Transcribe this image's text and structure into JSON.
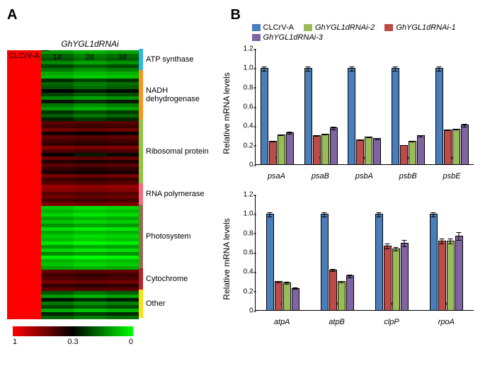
{
  "panelA": {
    "label": "A",
    "rnaiLabel": "GhYGL1dRNAi",
    "controlLabel": "CLCrV-A",
    "repLabels": [
      "1#",
      "2#",
      "3#"
    ],
    "scaleTicks": [
      "1",
      "0.3",
      "0"
    ],
    "scaleColors": [
      "#ff0000",
      "#000000",
      "#00ff00"
    ],
    "categories": [
      {
        "name": "ATP synthase",
        "color": "#33b5e7",
        "rows": 6
      },
      {
        "name": "NADH dehydrogenase",
        "color": "#f7941d",
        "rows": 14
      },
      {
        "name": "Ribosomal protein",
        "color": "#8cc63f",
        "rows": 18
      },
      {
        "name": "RNA polymerase",
        "color": "#f26d7d",
        "rows": 6
      },
      {
        "name": "Photosystem",
        "color": "#8b6f4e",
        "rows": 18
      },
      {
        "name": "Cytochrome",
        "color": "#b3252c",
        "rows": 6
      },
      {
        "name": "Other",
        "color": "#ffde17",
        "rows": 8
      }
    ],
    "heatmapRows": [
      [
        1.0,
        0.12,
        0.09,
        0.11
      ],
      [
        1.0,
        0.18,
        0.15,
        0.17
      ],
      [
        1.0,
        0.2,
        0.17,
        0.19
      ],
      [
        1.0,
        0.14,
        0.11,
        0.13
      ],
      [
        1.0,
        0.22,
        0.19,
        0.21
      ],
      [
        1.0,
        0.16,
        0.13,
        0.15
      ],
      [
        1.0,
        0.1,
        0.08,
        0.09
      ],
      [
        1.0,
        0.08,
        0.06,
        0.07
      ],
      [
        1.0,
        0.25,
        0.22,
        0.24
      ],
      [
        1.0,
        0.18,
        0.15,
        0.17
      ],
      [
        1.0,
        0.2,
        0.17,
        0.19
      ],
      [
        1.0,
        0.3,
        0.27,
        0.29
      ],
      [
        1.0,
        0.22,
        0.19,
        0.21
      ],
      [
        1.0,
        0.14,
        0.11,
        0.13
      ],
      [
        1.0,
        0.28,
        0.25,
        0.27
      ],
      [
        1.0,
        0.16,
        0.13,
        0.15
      ],
      [
        1.0,
        0.12,
        0.09,
        0.11
      ],
      [
        1.0,
        0.24,
        0.21,
        0.23
      ],
      [
        1.0,
        0.19,
        0.16,
        0.18
      ],
      [
        1.0,
        0.26,
        0.23,
        0.25
      ],
      [
        1.0,
        0.55,
        0.52,
        0.54
      ],
      [
        1.0,
        0.48,
        0.45,
        0.47
      ],
      [
        1.0,
        0.62,
        0.59,
        0.61
      ],
      [
        1.0,
        0.35,
        0.32,
        0.34
      ],
      [
        1.0,
        0.58,
        0.55,
        0.57
      ],
      [
        1.0,
        0.5,
        0.47,
        0.49
      ],
      [
        1.0,
        0.44,
        0.41,
        0.43
      ],
      [
        1.0,
        0.66,
        0.63,
        0.65
      ],
      [
        1.0,
        0.52,
        0.49,
        0.51
      ],
      [
        1.0,
        0.3,
        0.27,
        0.29
      ],
      [
        1.0,
        0.6,
        0.57,
        0.59
      ],
      [
        1.0,
        0.4,
        0.37,
        0.39
      ],
      [
        1.0,
        0.56,
        0.53,
        0.55
      ],
      [
        1.0,
        0.45,
        0.42,
        0.44
      ],
      [
        1.0,
        0.38,
        0.35,
        0.37
      ],
      [
        1.0,
        0.63,
        0.6,
        0.62
      ],
      [
        1.0,
        0.47,
        0.44,
        0.46
      ],
      [
        1.0,
        0.54,
        0.51,
        0.53
      ],
      [
        1.0,
        0.72,
        0.69,
        0.71
      ],
      [
        1.0,
        0.68,
        0.65,
        0.67
      ],
      [
        1.0,
        0.55,
        0.52,
        0.54
      ],
      [
        1.0,
        0.6,
        0.57,
        0.59
      ],
      [
        1.0,
        0.5,
        0.47,
        0.49
      ],
      [
        1.0,
        0.65,
        0.62,
        0.64
      ],
      [
        1.0,
        0.06,
        0.04,
        0.05
      ],
      [
        1.0,
        0.09,
        0.07,
        0.08
      ],
      [
        1.0,
        0.05,
        0.03,
        0.04
      ],
      [
        1.0,
        0.11,
        0.09,
        0.1
      ],
      [
        1.0,
        0.07,
        0.05,
        0.06
      ],
      [
        1.0,
        0.13,
        0.11,
        0.12
      ],
      [
        1.0,
        0.04,
        0.02,
        0.03
      ],
      [
        1.0,
        0.1,
        0.08,
        0.09
      ],
      [
        1.0,
        0.06,
        0.04,
        0.05
      ],
      [
        1.0,
        0.08,
        0.06,
        0.07
      ],
      [
        1.0,
        0.03,
        0.01,
        0.02
      ],
      [
        1.0,
        0.12,
        0.1,
        0.11
      ],
      [
        1.0,
        0.05,
        0.03,
        0.04
      ],
      [
        1.0,
        0.14,
        0.12,
        0.13
      ],
      [
        1.0,
        0.02,
        0.0,
        0.01
      ],
      [
        1.0,
        0.09,
        0.07,
        0.08
      ],
      [
        1.0,
        0.07,
        0.05,
        0.06
      ],
      [
        1.0,
        0.11,
        0.09,
        0.1
      ],
      [
        1.0,
        0.58,
        0.55,
        0.57
      ],
      [
        1.0,
        0.48,
        0.45,
        0.47
      ],
      [
        1.0,
        0.52,
        0.49,
        0.51
      ],
      [
        1.0,
        0.62,
        0.59,
        0.61
      ],
      [
        1.0,
        0.44,
        0.41,
        0.43
      ],
      [
        1.0,
        0.56,
        0.53,
        0.55
      ],
      [
        1.0,
        0.2,
        0.17,
        0.19
      ],
      [
        1.0,
        0.12,
        0.09,
        0.11
      ],
      [
        1.0,
        0.28,
        0.25,
        0.27
      ],
      [
        1.0,
        0.16,
        0.13,
        0.15
      ],
      [
        1.0,
        0.22,
        0.19,
        0.21
      ],
      [
        1.0,
        0.1,
        0.07,
        0.09
      ],
      [
        1.0,
        0.26,
        0.23,
        0.25
      ],
      [
        1.0,
        0.18,
        0.15,
        0.17
      ]
    ]
  },
  "panelB": {
    "label": "B",
    "legend": [
      {
        "label": "CLCrV-A",
        "color": "#4a7ebb",
        "italic": false
      },
      {
        "label": "GhYGL1dRNAi-2",
        "color": "#9bbb59",
        "italic": true
      },
      {
        "label": "GhYGL1dRNAi-1",
        "color": "#be4b48",
        "italic": true
      },
      {
        "label": "GhYGL1dRNAi-3",
        "color": "#8064a2",
        "italic": true
      }
    ],
    "yLabel": "Relative mRNA levels",
    "chart1": {
      "ymax": 1.2,
      "yticks": [
        "0",
        "0.2",
        "0.4",
        "0.6",
        "0.8",
        "1.0",
        "1.2"
      ],
      "genes": [
        "psaA",
        "psaB",
        "psbA",
        "psbB",
        "psbE"
      ],
      "series": [
        {
          "color": "#4a7ebb",
          "values": [
            1.0,
            1.0,
            1.0,
            1.0,
            1.0
          ],
          "err": [
            0.03,
            0.03,
            0.03,
            0.03,
            0.03
          ]
        },
        {
          "color": "#be4b48",
          "values": [
            0.24,
            0.3,
            0.26,
            0.2,
            0.36
          ],
          "err": [
            0.03,
            0.03,
            0.03,
            0.02,
            0.03
          ]
        },
        {
          "color": "#9bbb59",
          "values": [
            0.31,
            0.32,
            0.29,
            0.24,
            0.37
          ],
          "err": [
            0.03,
            0.03,
            0.03,
            0.02,
            0.03
          ]
        },
        {
          "color": "#8064a2",
          "values": [
            0.33,
            0.38,
            0.27,
            0.3,
            0.41
          ],
          "err": [
            0.05,
            0.05,
            0.05,
            0.05,
            0.06
          ]
        }
      ]
    },
    "chart2": {
      "ymax": 1.2,
      "yticks": [
        "0",
        "0.2",
        "0.4",
        "0.6",
        "0.8",
        "1.0",
        "1.2"
      ],
      "genes": [
        "atpA",
        "atpB",
        "clpP",
        "rpoA"
      ],
      "series": [
        {
          "color": "#4a7ebb",
          "values": [
            1.0,
            1.0,
            1.0,
            1.0
          ],
          "err": [
            0.03,
            0.03,
            0.03,
            0.03
          ]
        },
        {
          "color": "#be4b48",
          "values": [
            0.3,
            0.42,
            0.67,
            0.72
          ],
          "err": [
            0.05,
            0.05,
            0.05,
            0.05
          ]
        },
        {
          "color": "#9bbb59",
          "values": [
            0.29,
            0.3,
            0.64,
            0.72
          ],
          "err": [
            0.06,
            0.04,
            0.04,
            0.05
          ]
        },
        {
          "color": "#8064a2",
          "values": [
            0.23,
            0.36,
            0.7,
            0.77
          ],
          "err": [
            0.06,
            0.06,
            0.06,
            0.07
          ]
        }
      ]
    }
  }
}
